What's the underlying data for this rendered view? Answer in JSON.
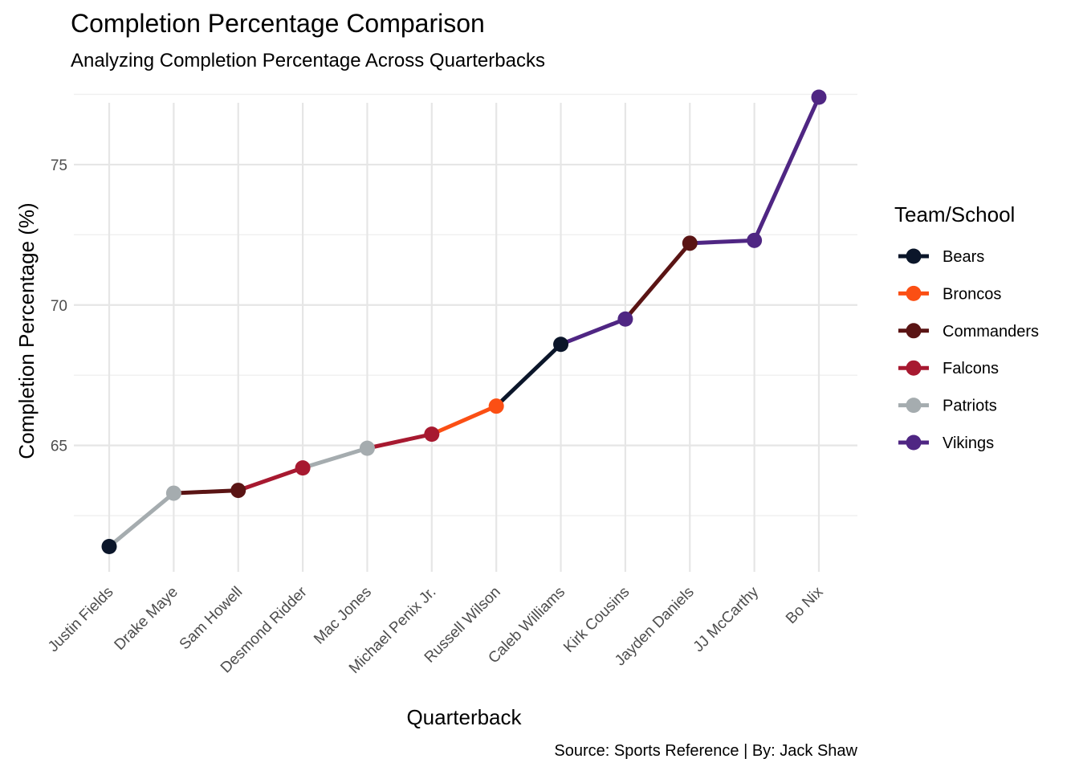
{
  "chart_data": {
    "type": "line",
    "title": "Completion Percentage Comparison",
    "subtitle": "Analyzing Completion Percentage Across Quarterbacks",
    "xlabel": "Quarterback",
    "ylabel": "Completion Percentage (%)",
    "caption": "Source: Sports Reference | By: Jack Shaw",
    "ylim": [
      60.5,
      78
    ],
    "y_ticks": [
      65,
      70,
      75
    ],
    "y_tick_labels": [
      "65",
      "70",
      "75"
    ],
    "grid": true,
    "legend_position": "right",
    "legend_title": "Team/School",
    "categories": [
      "Justin Fields",
      "Drake Maye",
      "Sam Howell",
      "Desmond Ridder",
      "Mac Jones",
      "Michael Penix Jr.",
      "Russell Wilson",
      "Caleb Williams",
      "Kirk Cousins",
      "Jayden Daniels",
      "JJ McCarthy",
      "Bo Nix"
    ],
    "values": [
      61.4,
      63.3,
      63.4,
      64.2,
      64.9,
      65.4,
      66.4,
      68.6,
      69.5,
      72.2,
      72.3,
      77.4
    ],
    "teams": [
      "Bears",
      "Patriots",
      "Commanders",
      "Falcons",
      "Patriots",
      "Falcons",
      "Broncos",
      "Bears",
      "Vikings",
      "Commanders",
      "Vikings",
      "Vikings"
    ],
    "legend": [
      {
        "name": "Bears",
        "color": "#0b162a"
      },
      {
        "name": "Broncos",
        "color": "#fb4f14"
      },
      {
        "name": "Commanders",
        "color": "#5a1414"
      },
      {
        "name": "Falcons",
        "color": "#a71930"
      },
      {
        "name": "Patriots",
        "color": "#a5acaf"
      },
      {
        "name": "Vikings",
        "color": "#4f2683"
      }
    ]
  }
}
